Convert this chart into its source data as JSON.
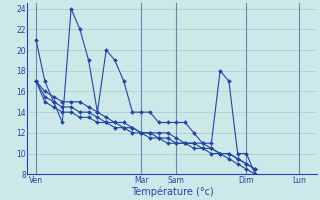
{
  "background_color": "#cde8e8",
  "grid_color": "#aacccc",
  "line_color": "#2244aa",
  "xlabel": "Température (°c)",
  "xlabel_color": "#2244aa",
  "tick_label_color": "#2244aa",
  "ylim": [
    8,
    24.5
  ],
  "yticks": [
    8,
    10,
    12,
    14,
    16,
    18,
    20,
    22,
    24
  ],
  "day_labels": [
    "Ven",
    "Mar",
    "Sam",
    "Dim",
    "Lun"
  ],
  "day_tick_positions": [
    1,
    13,
    17,
    25,
    31
  ],
  "day_vline_positions": [
    1,
    13,
    17,
    25,
    31
  ],
  "xlim": [
    0,
    33
  ],
  "figsize": [
    3.2,
    2.0
  ],
  "dpi": 100,
  "series1": [
    21,
    17,
    15,
    13,
    24,
    22,
    19,
    14,
    20,
    19,
    17,
    14,
    14,
    14,
    13,
    13,
    13,
    13,
    12,
    11,
    11,
    18,
    17,
    10,
    10,
    8
  ],
  "series2": [
    17,
    16,
    15.5,
    15,
    15,
    15,
    14.5,
    14,
    13.5,
    13,
    13,
    12.5,
    12,
    12,
    12,
    12,
    11.5,
    11,
    11,
    11,
    10.5,
    10,
    10,
    9.5,
    9,
    8.5
  ],
  "series3": [
    17,
    15.5,
    15,
    14.5,
    14.5,
    14,
    14,
    13.5,
    13,
    13,
    12.5,
    12.5,
    12,
    12,
    11.5,
    11.5,
    11,
    11,
    11,
    10.5,
    10.5,
    10,
    10,
    9.5,
    9,
    8.5
  ],
  "series4": [
    17,
    15,
    14.5,
    14,
    14,
    13.5,
    13.5,
    13,
    13,
    12.5,
    12.5,
    12,
    12,
    11.5,
    11.5,
    11,
    11,
    11,
    10.5,
    10.5,
    10,
    10,
    9.5,
    9,
    8.5,
    8
  ]
}
